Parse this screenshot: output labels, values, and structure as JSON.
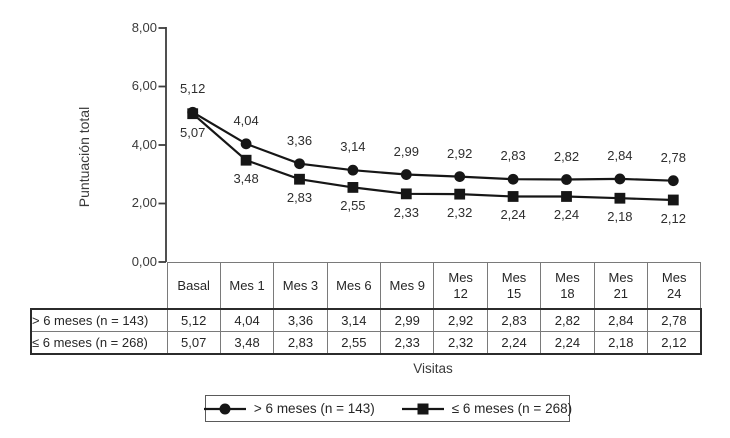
{
  "figure": {
    "y_axis": {
      "label": "Puntuación total",
      "ticks": [
        "8,00",
        "6,00",
        "4,00",
        "2,00",
        "0,00"
      ]
    },
    "x_axis": {
      "label": "Visitas"
    }
  },
  "chart_data": {
    "type": "line",
    "categories": [
      "Basal",
      "Mes 1",
      "Mes 3",
      "Mes 6",
      "Mes 9",
      "Mes 12",
      "Mes 15",
      "Mes 18",
      "Mes 21",
      "Mes 24"
    ],
    "series": [
      {
        "name": "> 6 meses (n = 143)",
        "marker": "circle",
        "values": [
          5.12,
          4.04,
          3.36,
          3.14,
          2.99,
          2.92,
          2.83,
          2.82,
          2.84,
          2.78
        ],
        "labels": [
          "5,12",
          "4,04",
          "3,36",
          "3,14",
          "2,99",
          "2,92",
          "2,83",
          "2,82",
          "2,84",
          "2,78"
        ]
      },
      {
        "name": "≤ 6 meses (n = 268)",
        "marker": "square",
        "values": [
          5.07,
          3.48,
          2.83,
          2.55,
          2.33,
          2.32,
          2.24,
          2.24,
          2.18,
          2.12
        ],
        "labels": [
          "5,07",
          "3,48",
          "2,83",
          "2,55",
          "2,33",
          "2,32",
          "2,24",
          "2,24",
          "2,18",
          "2,12"
        ]
      }
    ],
    "title": "",
    "xlabel": "Visitas",
    "ylabel": "Puntuación total",
    "ylim": [
      0,
      8
    ],
    "ytick_values": [
      8,
      6,
      4,
      2,
      0
    ],
    "ytick_labels": [
      "8,00",
      "6,00",
      "4,00",
      "2,00",
      "0,00"
    ],
    "grid": false,
    "legend_position": "bottom",
    "line_color": "#161616"
  },
  "table": {
    "col_headers": [
      "Basal",
      "Mes 1",
      "Mes 3",
      "Mes 6",
      "Mes 9",
      "Mes\n12",
      "Mes\n15",
      "Mes\n18",
      "Mes\n21",
      "Mes\n24"
    ],
    "rows": [
      {
        "label": "> 6 meses (n = 143)",
        "values": [
          "5,12",
          "4,04",
          "3,36",
          "3,14",
          "2,99",
          "2,92",
          "2,83",
          "2,82",
          "2,84",
          "2,78"
        ]
      },
      {
        "label": "≤ 6 meses (n = 268)",
        "values": [
          "5,07",
          "3,48",
          "2,83",
          "2,55",
          "2,33",
          "2,32",
          "2,24",
          "2,24",
          "2,18",
          "2,12"
        ]
      }
    ]
  },
  "legend": {
    "items": [
      {
        "label": "> 6 meses (n = 143)",
        "marker": "circle"
      },
      {
        "label": "≤ 6 meses (n = 268)",
        "marker": "square"
      }
    ]
  }
}
